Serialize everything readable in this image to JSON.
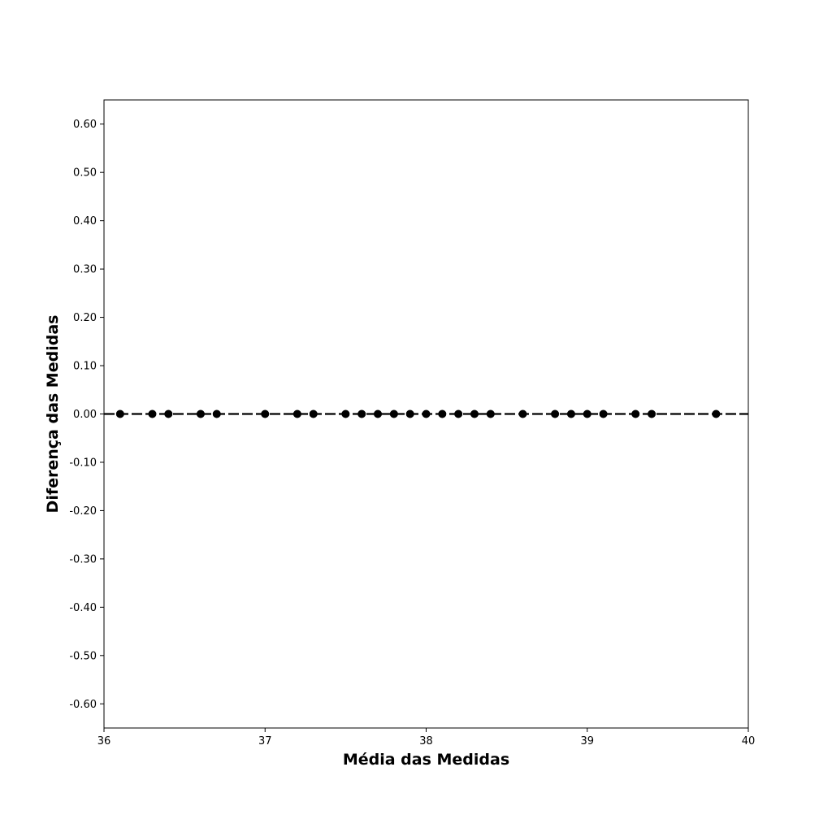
{
  "chart_data": {
    "type": "scatter",
    "title": "",
    "xlabel": "Média das Medidas",
    "ylabel": "Diferença das Medidas",
    "xlim": [
      36,
      40
    ],
    "ylim": [
      -0.65,
      0.65
    ],
    "x_ticks": [
      36,
      37,
      38,
      39,
      40
    ],
    "x_tick_labels": [
      "36",
      "37",
      "38",
      "39",
      "40"
    ],
    "y_ticks": [
      0.6,
      0.5,
      0.4,
      0.3,
      0.2,
      0.1,
      0.0,
      -0.1,
      -0.2,
      -0.3,
      -0.4,
      -0.5,
      -0.6
    ],
    "y_tick_labels": [
      "0.60",
      "0.50",
      "0.40",
      "0.30",
      "0.20",
      "0.10",
      "0.00",
      "-0.10",
      "-0.20",
      "-0.30",
      "-0.40",
      "-0.50",
      "-0.60"
    ],
    "reference_line": {
      "y": 0.0,
      "style": "dashed"
    },
    "grid": false,
    "marker_color": "#000000",
    "points": [
      {
        "x": 36.1,
        "y": 0.0
      },
      {
        "x": 36.3,
        "y": 0.0
      },
      {
        "x": 36.4,
        "y": 0.0
      },
      {
        "x": 36.6,
        "y": 0.0
      },
      {
        "x": 36.7,
        "y": 0.0
      },
      {
        "x": 37.0,
        "y": 0.0
      },
      {
        "x": 37.2,
        "y": 0.0
      },
      {
        "x": 37.3,
        "y": 0.0
      },
      {
        "x": 37.5,
        "y": 0.0
      },
      {
        "x": 37.6,
        "y": 0.0
      },
      {
        "x": 37.7,
        "y": 0.0
      },
      {
        "x": 37.8,
        "y": 0.0
      },
      {
        "x": 37.9,
        "y": 0.0
      },
      {
        "x": 38.0,
        "y": 0.0
      },
      {
        "x": 38.1,
        "y": 0.0
      },
      {
        "x": 38.2,
        "y": 0.0
      },
      {
        "x": 38.3,
        "y": 0.0
      },
      {
        "x": 38.4,
        "y": 0.0
      },
      {
        "x": 38.6,
        "y": 0.0
      },
      {
        "x": 38.8,
        "y": 0.0
      },
      {
        "x": 38.9,
        "y": 0.0
      },
      {
        "x": 39.0,
        "y": 0.0
      },
      {
        "x": 39.1,
        "y": 0.0
      },
      {
        "x": 39.3,
        "y": 0.0
      },
      {
        "x": 39.4,
        "y": 0.0
      },
      {
        "x": 39.8,
        "y": 0.0
      }
    ]
  }
}
